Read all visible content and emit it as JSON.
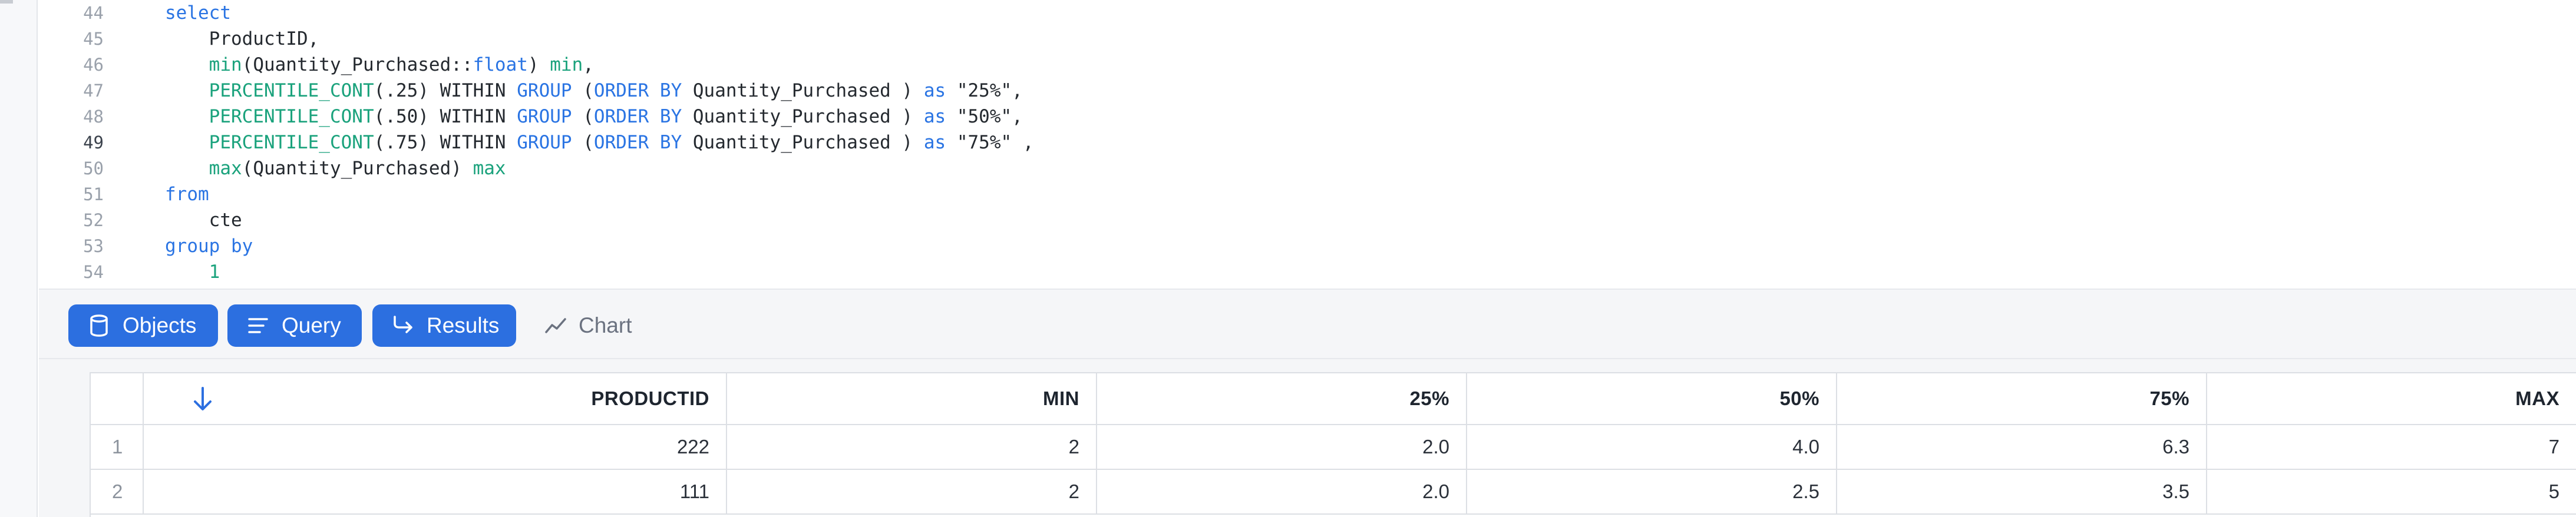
{
  "editor": {
    "lines": [
      {
        "num": "44",
        "tokens": [
          {
            "t": "select",
            "c": "kw"
          }
        ]
      },
      {
        "num": "45",
        "tokens": [
          {
            "t": "    ProductID,",
            "c": ""
          }
        ]
      },
      {
        "num": "46",
        "tokens": [
          {
            "t": "    ",
            "c": ""
          },
          {
            "t": "min",
            "c": "fn"
          },
          {
            "t": "(Quantity_Purchased",
            "c": ""
          },
          {
            "t": "::",
            "c": ""
          },
          {
            "t": "float",
            "c": "kw"
          },
          {
            "t": ") ",
            "c": ""
          },
          {
            "t": "min",
            "c": "fn"
          },
          {
            "t": ",",
            "c": ""
          }
        ]
      },
      {
        "num": "47",
        "tokens": [
          {
            "t": "    ",
            "c": ""
          },
          {
            "t": "PERCENTILE_CONT",
            "c": "fn"
          },
          {
            "t": "(.25) WITHIN ",
            "c": ""
          },
          {
            "t": "GROUP",
            "c": "kw"
          },
          {
            "t": " (",
            "c": ""
          },
          {
            "t": "ORDER BY",
            "c": "kw"
          },
          {
            "t": " Quantity_Purchased ) ",
            "c": ""
          },
          {
            "t": "as",
            "c": "kw"
          },
          {
            "t": " \"25%\",",
            "c": ""
          }
        ]
      },
      {
        "num": "48",
        "tokens": [
          {
            "t": "    ",
            "c": ""
          },
          {
            "t": "PERCENTILE_CONT",
            "c": "fn"
          },
          {
            "t": "(.50) WITHIN ",
            "c": ""
          },
          {
            "t": "GROUP",
            "c": "kw"
          },
          {
            "t": " (",
            "c": ""
          },
          {
            "t": "ORDER BY",
            "c": "kw"
          },
          {
            "t": " Quantity_Purchased ) ",
            "c": ""
          },
          {
            "t": "as",
            "c": "kw"
          },
          {
            "t": " \"50%\",",
            "c": ""
          }
        ]
      },
      {
        "num": "49",
        "tokens": [
          {
            "t": "    ",
            "c": ""
          },
          {
            "t": "PERCENTILE_CONT",
            "c": "fn"
          },
          {
            "t": "(.75) WITHIN ",
            "c": ""
          },
          {
            "t": "GROUP",
            "c": "kw"
          },
          {
            "t": " (",
            "c": ""
          },
          {
            "t": "ORDER BY",
            "c": "kw"
          },
          {
            "t": " Quantity_Purchased ) ",
            "c": ""
          },
          {
            "t": "as",
            "c": "kw"
          },
          {
            "t": " \"75%\" ,",
            "c": ""
          }
        ],
        "active": true
      },
      {
        "num": "50",
        "tokens": [
          {
            "t": "    ",
            "c": ""
          },
          {
            "t": "max",
            "c": "fn"
          },
          {
            "t": "(Quantity_Purchased) ",
            "c": ""
          },
          {
            "t": "max",
            "c": "fn"
          }
        ]
      },
      {
        "num": "51",
        "tokens": [
          {
            "t": "from",
            "c": "kw"
          }
        ]
      },
      {
        "num": "52",
        "tokens": [
          {
            "t": "    cte",
            "c": ""
          }
        ]
      },
      {
        "num": "53",
        "tokens": [
          {
            "t": "group by",
            "c": "kw"
          }
        ]
      },
      {
        "num": "54",
        "tokens": [
          {
            "t": "    ",
            "c": ""
          },
          {
            "t": "1",
            "c": "fn"
          }
        ]
      }
    ]
  },
  "toolbar": {
    "objects_label": "Objects",
    "query_label": "Query",
    "results_label": "Results",
    "chart_label": "Chart",
    "accent": "#2c6fe0"
  },
  "results": {
    "columns": [
      "PRODUCTID",
      "MIN",
      "25%",
      "50%",
      "75%",
      "MAX"
    ],
    "rows": [
      {
        "num": "1",
        "cells": [
          "222",
          "2",
          "2.0",
          "4.0",
          "6.3",
          "7"
        ]
      },
      {
        "num": "2",
        "cells": [
          "111",
          "2",
          "2.0",
          "2.5",
          "3.5",
          "5"
        ]
      }
    ]
  }
}
